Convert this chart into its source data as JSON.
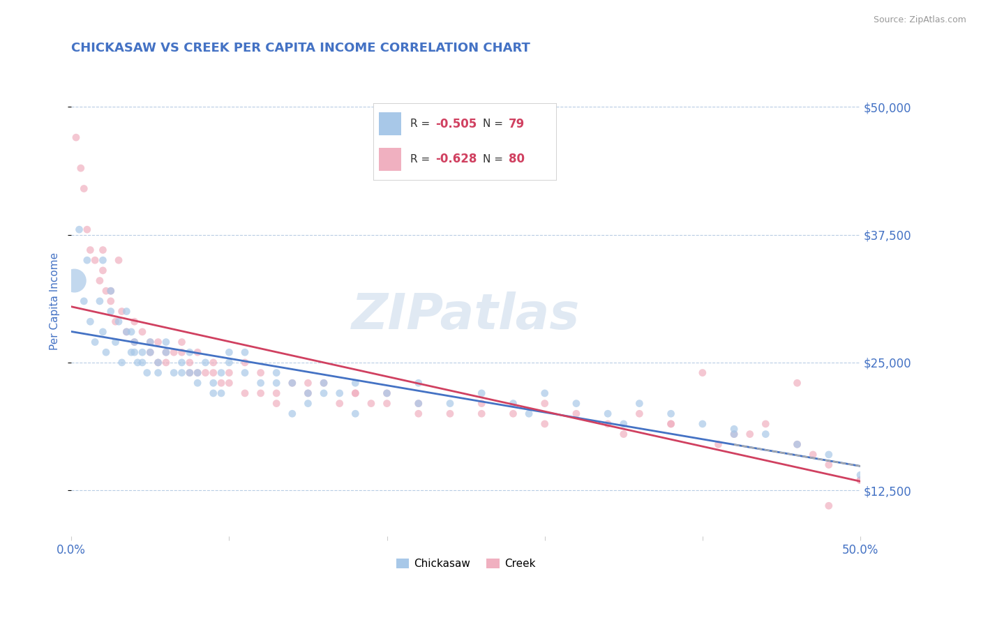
{
  "title": "CHICKASAW VS CREEK PER CAPITA INCOME CORRELATION CHART",
  "source_text": "Source: ZipAtlas.com",
  "ylabel": "Per Capita Income",
  "xlim": [
    0.0,
    0.5
  ],
  "ylim": [
    8000,
    54000
  ],
  "yticks": [
    12500,
    25000,
    37500,
    50000
  ],
  "ytick_labels": [
    "$12,500",
    "$25,000",
    "$37,500",
    "$50,000"
  ],
  "xticks": [
    0.0,
    0.1,
    0.2,
    0.3,
    0.4,
    0.5
  ],
  "xtick_labels": [
    "0.0%",
    "",
    "",
    "",
    "",
    "50.0%"
  ],
  "blue_color": "#a8c8e8",
  "pink_color": "#f0b0c0",
  "line_blue_color": "#4472c4",
  "line_pink_color": "#d04060",
  "dashed_color": "#aaaaaa",
  "title_color": "#4472c4",
  "axis_label_color": "#4472c4",
  "tick_label_color": "#4472c4",
  "source_color": "#999999",
  "r1": "-0.505",
  "n1": "79",
  "r2": "-0.628",
  "n2": "80",
  "legend_label1": "Chickasaw",
  "legend_label2": "Creek",
  "watermark": "ZIPatlas",
  "chickasaw_x": [
    0.002,
    0.005,
    0.008,
    0.01,
    0.012,
    0.015,
    0.018,
    0.02,
    0.022,
    0.025,
    0.028,
    0.03,
    0.032,
    0.035,
    0.038,
    0.04,
    0.042,
    0.045,
    0.048,
    0.05,
    0.055,
    0.06,
    0.065,
    0.07,
    0.075,
    0.08,
    0.085,
    0.09,
    0.095,
    0.1,
    0.11,
    0.12,
    0.13,
    0.14,
    0.15,
    0.16,
    0.17,
    0.18,
    0.2,
    0.22,
    0.24,
    0.26,
    0.28,
    0.3,
    0.32,
    0.34,
    0.36,
    0.38,
    0.4,
    0.42,
    0.44,
    0.46,
    0.48,
    0.5,
    0.035,
    0.05,
    0.07,
    0.09,
    0.11,
    0.13,
    0.025,
    0.04,
    0.06,
    0.08,
    0.1,
    0.15,
    0.18,
    0.02,
    0.045,
    0.075,
    0.16,
    0.22,
    0.29,
    0.35,
    0.42,
    0.038,
    0.055,
    0.095,
    0.14
  ],
  "chickasaw_y": [
    33000,
    38000,
    31000,
    35000,
    29000,
    27000,
    31000,
    28000,
    26000,
    30000,
    27000,
    29000,
    25000,
    28000,
    26000,
    27000,
    25000,
    26000,
    24000,
    27000,
    25000,
    26000,
    24000,
    25000,
    26000,
    24000,
    25000,
    23000,
    24000,
    25000,
    24000,
    23000,
    24000,
    23000,
    22000,
    23000,
    22000,
    23000,
    22000,
    23000,
    21000,
    22000,
    21000,
    22000,
    21000,
    20000,
    21000,
    20000,
    19000,
    18000,
    18000,
    17000,
    16000,
    14000,
    30000,
    26000,
    24000,
    22000,
    26000,
    23000,
    32000,
    26000,
    27000,
    23000,
    26000,
    21000,
    20000,
    35000,
    25000,
    24000,
    22000,
    21000,
    20000,
    19000,
    18500,
    28000,
    24000,
    22000,
    20000
  ],
  "chickasaw_size": [
    600,
    60,
    60,
    60,
    60,
    60,
    60,
    60,
    60,
    60,
    60,
    60,
    60,
    60,
    60,
    60,
    60,
    60,
    60,
    60,
    60,
    60,
    60,
    60,
    60,
    60,
    60,
    60,
    60,
    60,
    60,
    60,
    60,
    60,
    60,
    60,
    60,
    60,
    60,
    60,
    60,
    60,
    60,
    60,
    60,
    60,
    60,
    60,
    60,
    60,
    60,
    60,
    60,
    60,
    60,
    60,
    60,
    60,
    60,
    60,
    60,
    60,
    60,
    60,
    60,
    60,
    60,
    60,
    60,
    60,
    60,
    60,
    60,
    60,
    60,
    60,
    60,
    60,
    60
  ],
  "creek_x": [
    0.003,
    0.006,
    0.008,
    0.01,
    0.012,
    0.015,
    0.018,
    0.02,
    0.022,
    0.025,
    0.028,
    0.032,
    0.035,
    0.04,
    0.045,
    0.05,
    0.055,
    0.06,
    0.065,
    0.07,
    0.075,
    0.08,
    0.085,
    0.09,
    0.095,
    0.1,
    0.11,
    0.12,
    0.13,
    0.14,
    0.15,
    0.16,
    0.17,
    0.18,
    0.19,
    0.2,
    0.22,
    0.24,
    0.26,
    0.28,
    0.3,
    0.32,
    0.34,
    0.36,
    0.38,
    0.4,
    0.42,
    0.44,
    0.46,
    0.48,
    0.5,
    0.025,
    0.05,
    0.07,
    0.09,
    0.11,
    0.13,
    0.03,
    0.06,
    0.08,
    0.15,
    0.2,
    0.26,
    0.35,
    0.41,
    0.46,
    0.5,
    0.04,
    0.075,
    0.1,
    0.18,
    0.3,
    0.38,
    0.43,
    0.47,
    0.02,
    0.055,
    0.12,
    0.22,
    0.48
  ],
  "creek_y": [
    47000,
    44000,
    42000,
    38000,
    36000,
    35000,
    33000,
    34000,
    32000,
    31000,
    29000,
    30000,
    28000,
    27000,
    28000,
    26000,
    27000,
    25000,
    26000,
    27000,
    25000,
    26000,
    24000,
    25000,
    23000,
    24000,
    25000,
    24000,
    22000,
    23000,
    22000,
    23000,
    21000,
    22000,
    21000,
    22000,
    21000,
    20000,
    21000,
    20000,
    19000,
    20000,
    19000,
    20000,
    19000,
    24000,
    18000,
    19000,
    17000,
    15000,
    13500,
    32000,
    27000,
    26000,
    24000,
    22000,
    21000,
    35000,
    26000,
    24000,
    23000,
    21000,
    20000,
    18000,
    17000,
    23000,
    13500,
    29000,
    24000,
    23000,
    22000,
    21000,
    19000,
    18000,
    16000,
    36000,
    25000,
    22000,
    20000,
    11000
  ],
  "creek_size": [
    60,
    60,
    60,
    60,
    60,
    60,
    60,
    60,
    60,
    60,
    60,
    60,
    60,
    60,
    60,
    60,
    60,
    60,
    60,
    60,
    60,
    60,
    60,
    60,
    60,
    60,
    60,
    60,
    60,
    60,
    60,
    60,
    60,
    60,
    60,
    60,
    60,
    60,
    60,
    60,
    60,
    60,
    60,
    60,
    60,
    60,
    60,
    60,
    60,
    60,
    60,
    60,
    60,
    60,
    60,
    60,
    60,
    60,
    60,
    60,
    60,
    60,
    60,
    60,
    60,
    60,
    60,
    60,
    60,
    60,
    60,
    60,
    60,
    60,
    60,
    60,
    60,
    60,
    60,
    60
  ]
}
